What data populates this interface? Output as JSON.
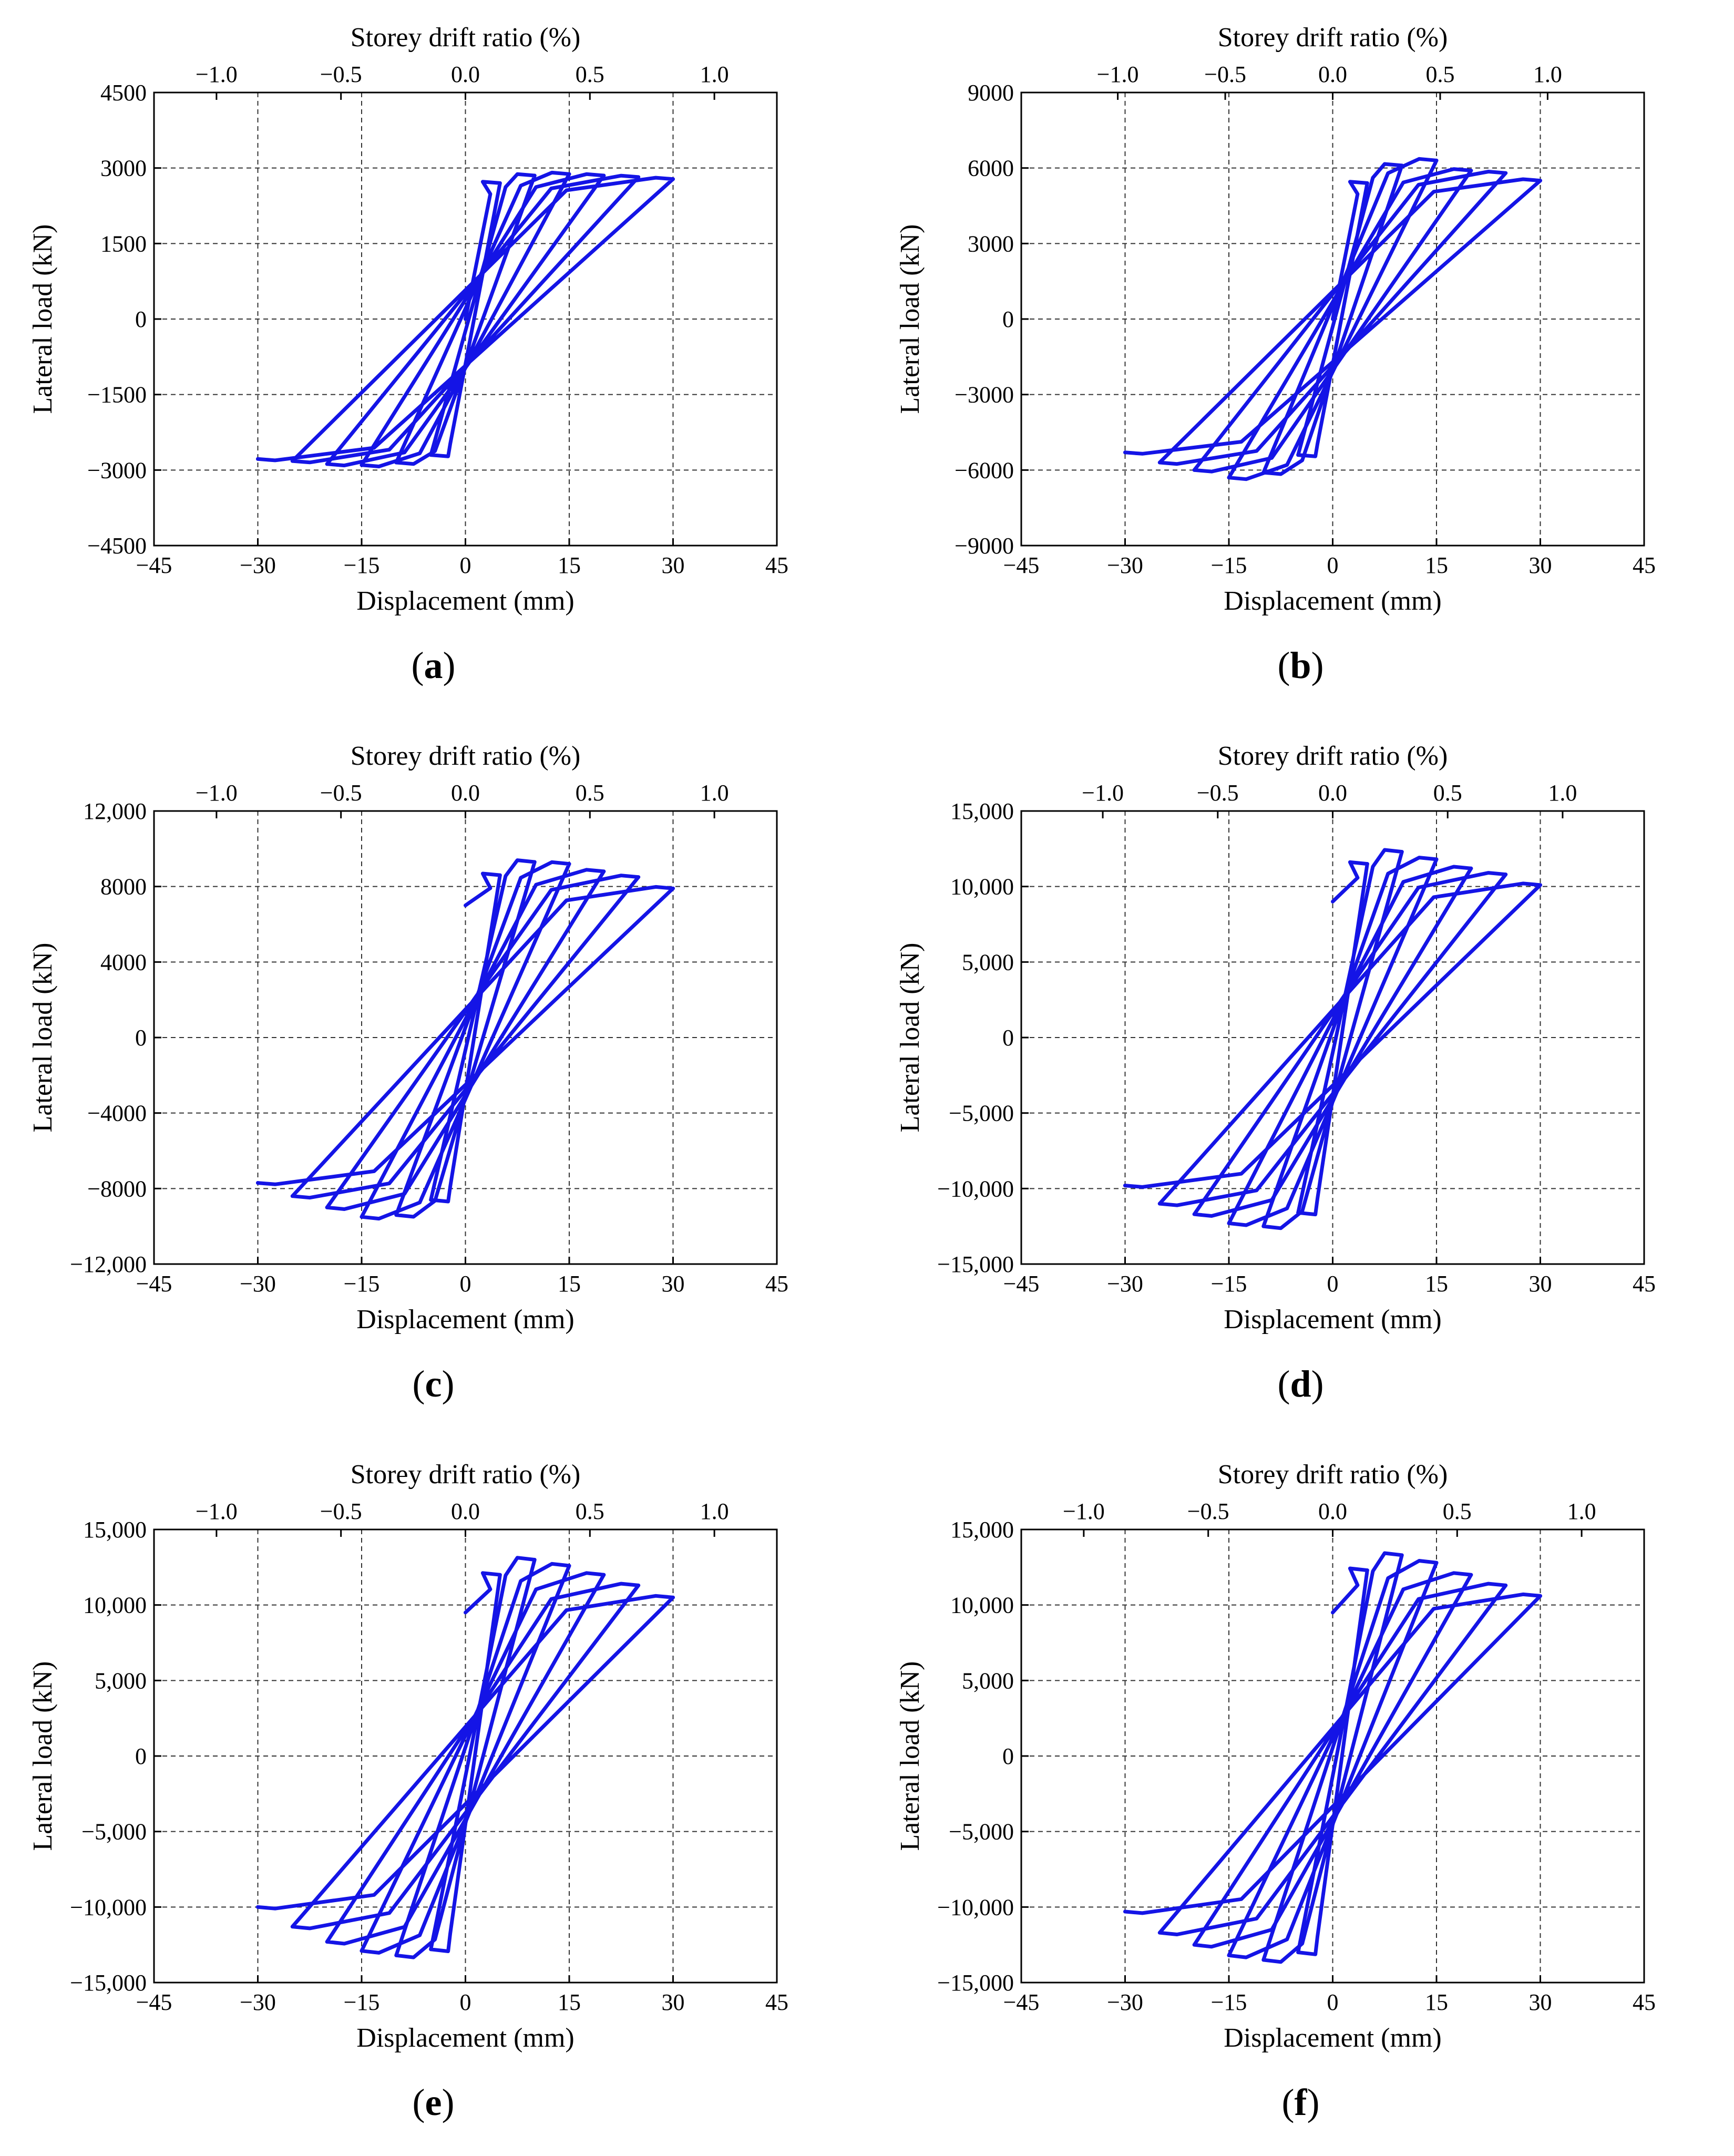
{
  "chart_data": [
    {
      "id": "a",
      "type": "line",
      "caption": "a",
      "xlabel": "Displacement (mm)",
      "ylabel": "Lateral load (kN)",
      "top_label": "Storey drift ratio (%)",
      "xlim": [
        -45,
        45
      ],
      "ylim": [
        -4500,
        4500
      ],
      "xticks": [
        -45,
        -30,
        -15,
        0,
        15,
        30,
        45
      ],
      "xtick_labels": [
        "−45",
        "−30",
        "−15",
        "0",
        "15",
        "30",
        "45"
      ],
      "yticks": [
        -4500,
        -3000,
        -1500,
        0,
        1500,
        3000,
        4500
      ],
      "ytick_labels": [
        "−4500",
        "−3000",
        "−1500",
        "0",
        "1500",
        "3000",
        "4500"
      ],
      "top_ticks": [
        -1.0,
        -0.5,
        0.0,
        0.5,
        1.0
      ],
      "top_tick_labels": [
        "−1.0",
        "−0.5",
        "0.0",
        "0.5",
        "1.0"
      ],
      "drift_per_mm": 0.0278,
      "grid": true,
      "series": [
        {
          "name": "Hysteresis",
          "color": "#1414e6",
          "x": [
            0,
            5,
            -5,
            10,
            -10,
            15,
            -15,
            20,
            -20,
            25,
            -25,
            30,
            -30
          ],
          "y": [
            0,
            2700,
            -2700,
            2850,
            -2850,
            2880,
            -2900,
            2850,
            -2880,
            2820,
            -2820,
            2780,
            -2780
          ]
        }
      ]
    },
    {
      "id": "b",
      "type": "line",
      "caption": "b",
      "xlabel": "Displacement (mm)",
      "ylabel": "Lateral load (kN)",
      "top_label": "Storey drift ratio (%)",
      "xlim": [
        -45,
        45
      ],
      "ylim": [
        -9000,
        9000
      ],
      "xticks": [
        -45,
        -30,
        -15,
        0,
        15,
        30,
        45
      ],
      "xtick_labels": [
        "−45",
        "−30",
        "−15",
        "0",
        "15",
        "30",
        "45"
      ],
      "yticks": [
        -9000,
        -6000,
        -3000,
        0,
        3000,
        6000,
        9000
      ],
      "ytick_labels": [
        "−9000",
        "−6000",
        "−3000",
        "0",
        "3000",
        "6000",
        "9000"
      ],
      "top_ticks": [
        -1.0,
        -0.5,
        0.0,
        0.5,
        1.0
      ],
      "top_tick_labels": [
        "−1.0",
        "−0.5",
        "0.0",
        "0.5",
        "1.0"
      ],
      "drift_per_mm": 0.0322,
      "grid": true,
      "series": [
        {
          "name": "Hysteresis",
          "color": "#1414e6",
          "x": [
            0,
            5,
            -5,
            10,
            -10,
            15,
            -15,
            20,
            -20,
            25,
            -25,
            30,
            -30
          ],
          "y": [
            0,
            5400,
            -5400,
            6100,
            -6100,
            6300,
            -6300,
            5900,
            -6000,
            5800,
            -5700,
            5500,
            -5300
          ]
        }
      ]
    },
    {
      "id": "c",
      "type": "line",
      "caption": "c",
      "xlabel": "Displacement (mm)",
      "ylabel": "Lateral load (kN)",
      "top_label": "Storey drift ratio (%)",
      "xlim": [
        -45,
        45
      ],
      "ylim": [
        -12000,
        12000
      ],
      "xticks": [
        -45,
        -30,
        -15,
        0,
        15,
        30,
        45
      ],
      "xtick_labels": [
        "−45",
        "−30",
        "−15",
        "0",
        "15",
        "30",
        "45"
      ],
      "yticks": [
        -12000,
        -8000,
        -4000,
        0,
        4000,
        8000,
        12000
      ],
      "ytick_labels": [
        "−12,000",
        "−8000",
        "−4000",
        "0",
        "4000",
        "8000",
        "12,000"
      ],
      "top_ticks": [
        -1.0,
        -0.5,
        0.0,
        0.5,
        1.0
      ],
      "top_tick_labels": [
        "−1.0",
        "−0.5",
        "0.0",
        "0.5",
        "1.0"
      ],
      "drift_per_mm": 0.0278,
      "grid": true,
      "series": [
        {
          "name": "Hysteresis",
          "color": "#1414e6",
          "x": [
            0,
            5,
            -5,
            10,
            -10,
            15,
            -15,
            20,
            -20,
            25,
            -25,
            30,
            -30
          ],
          "y": [
            7000,
            8600,
            -8600,
            9300,
            -9400,
            9200,
            -9500,
            8800,
            -9000,
            8500,
            -8400,
            7900,
            -7700
          ]
        }
      ]
    },
    {
      "id": "d",
      "type": "line",
      "caption": "d",
      "xlabel": "Displacement (mm)",
      "ylabel": "Lateral load (kN)",
      "top_label": "Storey drift ratio (%)",
      "xlim": [
        -45,
        45
      ],
      "ylim": [
        -15000,
        15000
      ],
      "xticks": [
        -45,
        -30,
        -15,
        0,
        15,
        30,
        45
      ],
      "xtick_labels": [
        "−45",
        "−30",
        "−15",
        "0",
        "15",
        "30",
        "45"
      ],
      "yticks": [
        -15000,
        -10000,
        -5000,
        0,
        5000,
        10000,
        15000
      ],
      "ytick_labels": [
        "−15,000",
        "−10,000",
        "−5,000",
        "0",
        "5,000",
        "10,000",
        "15,000"
      ],
      "top_ticks": [
        -1.0,
        -0.5,
        0.0,
        0.5,
        1.0
      ],
      "top_tick_labels": [
        "−1.0",
        "−0.5",
        "0.0",
        "0.5",
        "1.0"
      ],
      "drift_per_mm": 0.0301,
      "grid": true,
      "series": [
        {
          "name": "Hysteresis",
          "color": "#1414e6",
          "x": [
            0,
            5,
            -5,
            10,
            -10,
            15,
            -15,
            20,
            -20,
            25,
            -25,
            30,
            -30
          ],
          "y": [
            9000,
            11500,
            -11600,
            12300,
            -12500,
            11800,
            -12300,
            11200,
            -11700,
            10800,
            -11000,
            10100,
            -9800
          ]
        }
      ]
    },
    {
      "id": "e",
      "type": "line",
      "caption": "e",
      "xlabel": "Displacement (mm)",
      "ylabel": "Lateral load (kN)",
      "top_label": "Storey drift ratio (%)",
      "xlim": [
        -45,
        45
      ],
      "ylim": [
        -15000,
        15000
      ],
      "xticks": [
        -45,
        -30,
        -15,
        0,
        15,
        30,
        45
      ],
      "xtick_labels": [
        "−45",
        "−30",
        "−15",
        "0",
        "15",
        "30",
        "45"
      ],
      "yticks": [
        -15000,
        -10000,
        -5000,
        0,
        5000,
        10000,
        15000
      ],
      "ytick_labels": [
        "−15,000",
        "−10,000",
        "−5,000",
        "0",
        "5,000",
        "10,000",
        "15,000"
      ],
      "top_ticks": [
        -1.0,
        -0.5,
        0.0,
        0.5,
        1.0
      ],
      "top_tick_labels": [
        "−1.0",
        "−0.5",
        "0.0",
        "0.5",
        "1.0"
      ],
      "drift_per_mm": 0.0278,
      "grid": true,
      "series": [
        {
          "name": "Hysteresis",
          "color": "#1414e6",
          "x": [
            0,
            5,
            -5,
            10,
            -10,
            15,
            -15,
            20,
            -20,
            25,
            -25,
            30,
            -30
          ],
          "y": [
            9500,
            12000,
            -12800,
            13000,
            -13200,
            12600,
            -12900,
            12000,
            -12300,
            11300,
            -11300,
            10500,
            -10000
          ]
        }
      ]
    },
    {
      "id": "f",
      "type": "line",
      "caption": "f",
      "xlabel": "Displacement (mm)",
      "ylabel": "Lateral load (kN)",
      "top_label": "Storey drift ratio (%)",
      "xlim": [
        -45,
        45
      ],
      "ylim": [
        -15000,
        15000
      ],
      "xticks": [
        -45,
        -30,
        -15,
        0,
        15,
        30,
        45
      ],
      "xtick_labels": [
        "−45",
        "−30",
        "−15",
        "0",
        "15",
        "30",
        "45"
      ],
      "yticks": [
        -15000,
        -10000,
        -5000,
        0,
        5000,
        10000,
        15000
      ],
      "ytick_labels": [
        "−15,000",
        "−10,000",
        "−5,000",
        "0",
        "5,000",
        "10,000",
        "15,000"
      ],
      "top_ticks": [
        -1.0,
        -0.5,
        0.0,
        0.5,
        1.0
      ],
      "top_tick_labels": [
        "−1.0",
        "−0.5",
        "0.0",
        "0.5",
        "1.0"
      ],
      "drift_per_mm": 0.0278,
      "grid": true,
      "series": [
        {
          "name": "Hysteresis",
          "color": "#1414e6",
          "x": [
            0,
            5,
            -5,
            10,
            -10,
            15,
            -15,
            20,
            -20,
            25,
            -25,
            30,
            -30
          ],
          "y": [
            9500,
            12300,
            -13000,
            13300,
            -13500,
            12800,
            -13200,
            12000,
            -12500,
            11300,
            -11700,
            10600,
            -10300
          ]
        }
      ]
    }
  ]
}
